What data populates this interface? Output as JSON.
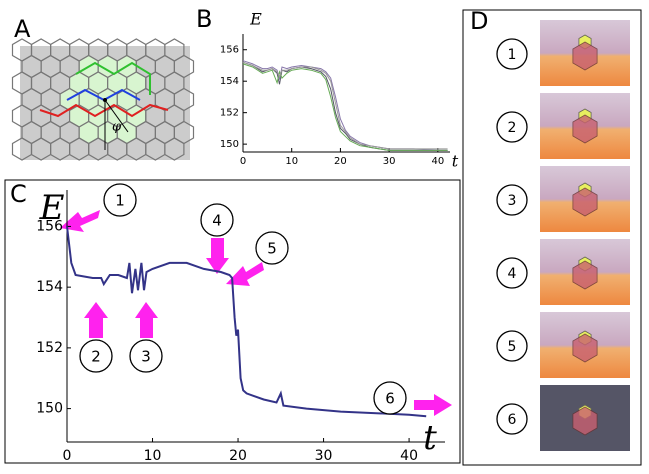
{
  "panels": {
    "labels": [
      "A",
      "B",
      "C",
      "D"
    ]
  },
  "panel_a": {
    "angle_label": "φ"
  },
  "panel_c": {
    "callouts": [
      "1",
      "2",
      "3",
      "4",
      "5",
      "6"
    ]
  },
  "panel_d": {
    "steps": [
      "1",
      "2",
      "3",
      "4",
      "5",
      "6"
    ]
  },
  "chart_data": [
    {
      "type": "line",
      "x_label": "t",
      "y_label": "E",
      "x": [
        0,
        2,
        4,
        5,
        6,
        7,
        7.5,
        8,
        9,
        10,
        12,
        14,
        16,
        17,
        18,
        19,
        20,
        21,
        22,
        24,
        26,
        28,
        30,
        35,
        40,
        42
      ],
      "series": [
        {
          "color": "#555566",
          "values": [
            155.2,
            155,
            154.6,
            154.7,
            154.8,
            154.5,
            153.8,
            154.7,
            154.6,
            154.8,
            154.9,
            154.8,
            154.6,
            154.3,
            153.5,
            152,
            151,
            150.7,
            150.3,
            150,
            149.8,
            149.7,
            149.6,
            149.6,
            149.6,
            149.6
          ]
        },
        {
          "color": "#8877aa",
          "values": [
            155.3,
            155.1,
            154.8,
            154.8,
            154.9,
            154.7,
            154.1,
            154.9,
            154.8,
            154.9,
            155,
            154.9,
            154.8,
            154.6,
            154.2,
            153,
            151.6,
            150.9,
            150.5,
            150.1,
            149.9,
            149.8,
            149.7,
            149.7,
            149.6,
            149.6
          ]
        },
        {
          "color": "#66aa55",
          "values": [
            155.1,
            154.9,
            154.5,
            154.6,
            154.7,
            153.9,
            154.6,
            154.2,
            154.5,
            154.7,
            154.8,
            154.7,
            154.5,
            154.1,
            153,
            151.7,
            150.8,
            150.5,
            150.2,
            149.9,
            149.8,
            149.7,
            149.6,
            149.6,
            149.6,
            149.6
          ]
        },
        {
          "color": "#999999",
          "values": [
            155.2,
            155,
            154.7,
            154.7,
            154.8,
            154.6,
            154.3,
            154.7,
            154.7,
            154.8,
            154.9,
            154.9,
            154.7,
            154.5,
            154,
            152.6,
            151.2,
            150.8,
            150.4,
            150,
            149.9,
            149.8,
            149.7,
            149.7,
            149.7,
            149.7
          ]
        }
      ],
      "xlim": [
        0,
        42.5
      ],
      "ylim": [
        149.5,
        157
      ],
      "xticks": [
        0,
        10,
        20,
        30,
        40
      ],
      "yticks": [
        150,
        152,
        154,
        156
      ]
    },
    {
      "type": "line",
      "x_label": "t",
      "y_label": "E",
      "x": [
        0,
        0.5,
        1,
        2,
        3,
        4,
        4.3,
        5,
        6,
        7,
        7.3,
        7.6,
        8,
        8.3,
        8.7,
        9,
        9.3,
        10,
        12,
        14,
        16,
        18,
        19,
        19.3,
        19.6,
        19.8,
        20,
        20.3,
        20.6,
        21,
        23,
        24.5,
        25,
        25.3,
        28,
        32,
        40,
        42
      ],
      "series": [
        {
          "color": "#333388",
          "values": [
            156,
            154.8,
            154.4,
            154.35,
            154.3,
            154.3,
            154.1,
            154.4,
            154.4,
            154.3,
            154.8,
            153.8,
            154.6,
            153.9,
            154.8,
            153.9,
            154.5,
            154.6,
            154.8,
            154.8,
            154.6,
            154.5,
            154.4,
            154.3,
            153,
            152.4,
            152.6,
            151,
            150.6,
            150.5,
            150.3,
            150.2,
            150.5,
            150.1,
            150,
            149.9,
            149.8,
            149.75
          ]
        }
      ],
      "xlim": [
        0,
        44.2
      ],
      "ylim": [
        148.9,
        157.2
      ],
      "xticks": [
        0,
        10,
        20,
        30,
        40
      ],
      "yticks": [
        150,
        152,
        154,
        156
      ]
    }
  ]
}
